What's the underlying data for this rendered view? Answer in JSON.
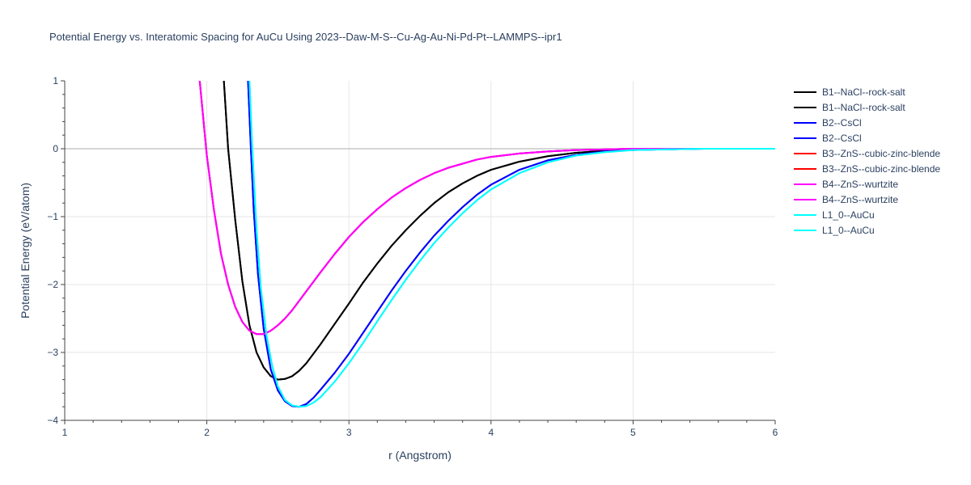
{
  "chart_data": {
    "type": "line",
    "title": "Potential Energy vs. Interatomic Spacing for AuCu Using 2023--Daw-M-S--Cu-Ag-Au-Ni-Pd-Pt--LAMMPS--ipr1",
    "xlabel": "r (Angstrom)",
    "ylabel": "Potential Energy (eV/atom)",
    "xlim": [
      1,
      6
    ],
    "ylim": [
      -4,
      1
    ],
    "x_ticks": [
      "1",
      "2",
      "3",
      "4",
      "5",
      "6"
    ],
    "y_ticks": [
      "1",
      "0",
      "−1",
      "−2",
      "−3",
      "−4"
    ],
    "grid": true,
    "legend_position": "right",
    "series": [
      {
        "name": "B1--NaCl--rock-salt",
        "color": "#000000",
        "x": [
          2.12,
          2.15,
          2.2,
          2.25,
          2.3,
          2.35,
          2.4,
          2.45,
          2.5,
          2.55,
          2.6,
          2.65,
          2.7,
          2.8,
          2.9,
          3.0,
          3.1,
          3.2,
          3.3,
          3.4,
          3.5,
          3.6,
          3.7,
          3.8,
          3.9,
          4.0,
          4.2,
          4.4,
          4.6,
          4.8,
          5.0,
          5.2,
          5.5,
          6.0
        ],
        "y": [
          1.0,
          0.0,
          -1.05,
          -1.95,
          -2.6,
          -3.0,
          -3.22,
          -3.35,
          -3.4,
          -3.39,
          -3.35,
          -3.27,
          -3.16,
          -2.88,
          -2.58,
          -2.28,
          -1.97,
          -1.69,
          -1.43,
          -1.2,
          -0.99,
          -0.8,
          -0.64,
          -0.51,
          -0.4,
          -0.31,
          -0.19,
          -0.11,
          -0.06,
          -0.03,
          -0.01,
          0.0,
          0.0,
          0.0
        ]
      },
      {
        "name": "B1--NaCl--rock-salt",
        "color": "#000000",
        "x": [
          2.12,
          2.15,
          2.2,
          2.25,
          2.3,
          2.35,
          2.4,
          2.45,
          2.5,
          2.55,
          2.6,
          2.65,
          2.7,
          2.8,
          2.9,
          3.0,
          3.1,
          3.2,
          3.3,
          3.4,
          3.5,
          3.6,
          3.7,
          3.8,
          3.9,
          4.0,
          4.2,
          4.4,
          4.6,
          4.8,
          5.0,
          5.2,
          5.5,
          6.0
        ],
        "y": [
          1.0,
          0.0,
          -1.05,
          -1.95,
          -2.6,
          -3.0,
          -3.22,
          -3.35,
          -3.4,
          -3.39,
          -3.35,
          -3.27,
          -3.16,
          -2.88,
          -2.58,
          -2.28,
          -1.97,
          -1.69,
          -1.43,
          -1.2,
          -0.99,
          -0.8,
          -0.64,
          -0.51,
          -0.4,
          -0.31,
          -0.19,
          -0.11,
          -0.06,
          -0.03,
          -0.01,
          0.0,
          0.0,
          0.0
        ]
      },
      {
        "name": "B2--CsCl",
        "color": "#0000ff",
        "x": [
          2.29,
          2.31,
          2.33,
          2.36,
          2.4,
          2.45,
          2.5,
          2.55,
          2.6,
          2.65,
          2.7,
          2.75,
          2.8,
          2.9,
          3.0,
          3.1,
          3.2,
          3.3,
          3.4,
          3.5,
          3.6,
          3.7,
          3.8,
          3.9,
          4.0,
          4.2,
          4.4,
          4.6,
          4.8,
          5.0,
          5.2,
          5.5,
          6.0
        ],
        "y": [
          1.0,
          0.0,
          -0.9,
          -1.85,
          -2.65,
          -3.25,
          -3.56,
          -3.72,
          -3.79,
          -3.8,
          -3.76,
          -3.67,
          -3.55,
          -3.3,
          -3.02,
          -2.71,
          -2.4,
          -2.09,
          -1.8,
          -1.53,
          -1.28,
          -1.06,
          -0.86,
          -0.68,
          -0.53,
          -0.31,
          -0.17,
          -0.09,
          -0.04,
          -0.02,
          -0.01,
          0.0,
          0.0
        ]
      },
      {
        "name": "B2--CsCl",
        "color": "#0000ff",
        "x": [
          2.29,
          2.31,
          2.33,
          2.36,
          2.4,
          2.45,
          2.5,
          2.55,
          2.6,
          2.65,
          2.7,
          2.75,
          2.8,
          2.9,
          3.0,
          3.1,
          3.2,
          3.3,
          3.4,
          3.5,
          3.6,
          3.7,
          3.8,
          3.9,
          4.0,
          4.2,
          4.4,
          4.6,
          4.8,
          5.0,
          5.2,
          5.5,
          6.0
        ],
        "y": [
          1.0,
          0.0,
          -0.9,
          -1.85,
          -2.65,
          -3.25,
          -3.56,
          -3.72,
          -3.79,
          -3.8,
          -3.76,
          -3.67,
          -3.55,
          -3.3,
          -3.02,
          -2.71,
          -2.4,
          -2.09,
          -1.8,
          -1.53,
          -1.28,
          -1.06,
          -0.86,
          -0.68,
          -0.53,
          -0.31,
          -0.17,
          -0.09,
          -0.04,
          -0.02,
          -0.01,
          0.0,
          0.0
        ]
      },
      {
        "name": "B3--ZnS--cubic-zinc-blende",
        "color": "#ff0000",
        "x": [
          1.95,
          2.0,
          2.05,
          2.1,
          2.15,
          2.2,
          2.25,
          2.3,
          2.35,
          2.4,
          2.45,
          2.5,
          2.55,
          2.6,
          2.7,
          2.8,
          2.9,
          3.0,
          3.1,
          3.2,
          3.3,
          3.4,
          3.5,
          3.6,
          3.7,
          3.8,
          3.9,
          4.0,
          4.2,
          4.4,
          4.6,
          4.8,
          5.0,
          5.2,
          5.5,
          6.0
        ],
        "y": [
          1.0,
          -0.1,
          -0.9,
          -1.55,
          -2.0,
          -2.33,
          -2.55,
          -2.68,
          -2.73,
          -2.73,
          -2.68,
          -2.6,
          -2.5,
          -2.38,
          -2.1,
          -1.82,
          -1.55,
          -1.3,
          -1.08,
          -0.89,
          -0.72,
          -0.58,
          -0.46,
          -0.36,
          -0.28,
          -0.22,
          -0.16,
          -0.12,
          -0.07,
          -0.04,
          -0.02,
          -0.01,
          0.0,
          0.0,
          0.0,
          0.0
        ]
      },
      {
        "name": "B3--ZnS--cubic-zinc-blende",
        "color": "#ff0000",
        "x": [
          1.95,
          2.0,
          2.05,
          2.1,
          2.15,
          2.2,
          2.25,
          2.3,
          2.35,
          2.4,
          2.45,
          2.5,
          2.55,
          2.6,
          2.7,
          2.8,
          2.9,
          3.0,
          3.1,
          3.2,
          3.3,
          3.4,
          3.5,
          3.6,
          3.7,
          3.8,
          3.9,
          4.0,
          4.2,
          4.4,
          4.6,
          4.8,
          5.0,
          5.2,
          5.5,
          6.0
        ],
        "y": [
          1.0,
          -0.1,
          -0.9,
          -1.55,
          -2.0,
          -2.33,
          -2.55,
          -2.68,
          -2.73,
          -2.73,
          -2.68,
          -2.6,
          -2.5,
          -2.38,
          -2.1,
          -1.82,
          -1.55,
          -1.3,
          -1.08,
          -0.89,
          -0.72,
          -0.58,
          -0.46,
          -0.36,
          -0.28,
          -0.22,
          -0.16,
          -0.12,
          -0.07,
          -0.04,
          -0.02,
          -0.01,
          0.0,
          0.0,
          0.0,
          0.0
        ]
      },
      {
        "name": "B4--ZnS--wurtzite",
        "color": "#ff00ff",
        "x": [
          1.95,
          2.0,
          2.05,
          2.1,
          2.15,
          2.2,
          2.25,
          2.3,
          2.35,
          2.4,
          2.45,
          2.5,
          2.55,
          2.6,
          2.7,
          2.8,
          2.9,
          3.0,
          3.1,
          3.2,
          3.3,
          3.4,
          3.5,
          3.6,
          3.7,
          3.8,
          3.9,
          4.0,
          4.2,
          4.4,
          4.6,
          4.8,
          5.0,
          5.2,
          5.5,
          6.0
        ],
        "y": [
          1.0,
          -0.1,
          -0.9,
          -1.55,
          -2.0,
          -2.33,
          -2.55,
          -2.68,
          -2.73,
          -2.73,
          -2.68,
          -2.6,
          -2.5,
          -2.38,
          -2.1,
          -1.82,
          -1.55,
          -1.3,
          -1.08,
          -0.89,
          -0.72,
          -0.58,
          -0.46,
          -0.36,
          -0.28,
          -0.22,
          -0.16,
          -0.12,
          -0.07,
          -0.04,
          -0.02,
          -0.01,
          0.0,
          0.0,
          0.0,
          0.0
        ]
      },
      {
        "name": "B4--ZnS--wurtzite",
        "color": "#ff00ff",
        "x": [
          1.95,
          2.0,
          2.05,
          2.1,
          2.15,
          2.2,
          2.25,
          2.3,
          2.35,
          2.4,
          2.45,
          2.5,
          2.55,
          2.6,
          2.7,
          2.8,
          2.9,
          3.0,
          3.1,
          3.2,
          3.3,
          3.4,
          3.5,
          3.6,
          3.7,
          3.8,
          3.9,
          4.0,
          4.2,
          4.4,
          4.6,
          4.8,
          5.0,
          5.2,
          5.5,
          6.0
        ],
        "y": [
          1.0,
          -0.1,
          -0.9,
          -1.55,
          -2.0,
          -2.33,
          -2.55,
          -2.68,
          -2.73,
          -2.73,
          -2.68,
          -2.6,
          -2.5,
          -2.38,
          -2.1,
          -1.82,
          -1.55,
          -1.3,
          -1.08,
          -0.89,
          -0.72,
          -0.58,
          -0.46,
          -0.36,
          -0.28,
          -0.22,
          -0.16,
          -0.12,
          -0.07,
          -0.04,
          -0.02,
          -0.01,
          0.0,
          0.0,
          0.0,
          0.0
        ]
      },
      {
        "name": "L1_0--AuCu",
        "color": "#00ffff",
        "x": [
          2.3,
          2.32,
          2.35,
          2.38,
          2.42,
          2.46,
          2.5,
          2.55,
          2.6,
          2.65,
          2.7,
          2.75,
          2.8,
          2.9,
          3.0,
          3.1,
          3.2,
          3.3,
          3.4,
          3.5,
          3.6,
          3.7,
          3.8,
          3.9,
          4.0,
          4.2,
          4.4,
          4.6,
          4.8,
          5.0,
          5.2,
          5.5,
          6.0
        ],
        "y": [
          1.0,
          0.0,
          -1.2,
          -2.05,
          -2.75,
          -3.2,
          -3.5,
          -3.7,
          -3.78,
          -3.8,
          -3.79,
          -3.74,
          -3.66,
          -3.43,
          -3.16,
          -2.86,
          -2.54,
          -2.23,
          -1.93,
          -1.65,
          -1.39,
          -1.16,
          -0.95,
          -0.76,
          -0.6,
          -0.36,
          -0.2,
          -0.1,
          -0.05,
          -0.02,
          -0.01,
          0.0,
          0.0
        ]
      },
      {
        "name": "L1_0--AuCu",
        "color": "#00ffff",
        "x": [
          2.3,
          2.32,
          2.35,
          2.38,
          2.42,
          2.46,
          2.5,
          2.55,
          2.6,
          2.65,
          2.7,
          2.75,
          2.8,
          2.9,
          3.0,
          3.1,
          3.2,
          3.3,
          3.4,
          3.5,
          3.6,
          3.7,
          3.8,
          3.9,
          4.0,
          4.2,
          4.4,
          4.6,
          4.8,
          5.0,
          5.2,
          5.5,
          6.0
        ],
        "y": [
          1.0,
          0.0,
          -1.2,
          -2.05,
          -2.75,
          -3.2,
          -3.5,
          -3.7,
          -3.78,
          -3.8,
          -3.79,
          -3.74,
          -3.66,
          -3.43,
          -3.16,
          -2.86,
          -2.54,
          -2.23,
          -1.93,
          -1.65,
          -1.39,
          -1.16,
          -0.95,
          -0.76,
          -0.6,
          -0.36,
          -0.2,
          -0.1,
          -0.05,
          -0.02,
          -0.01,
          0.0,
          0.0
        ]
      }
    ]
  }
}
